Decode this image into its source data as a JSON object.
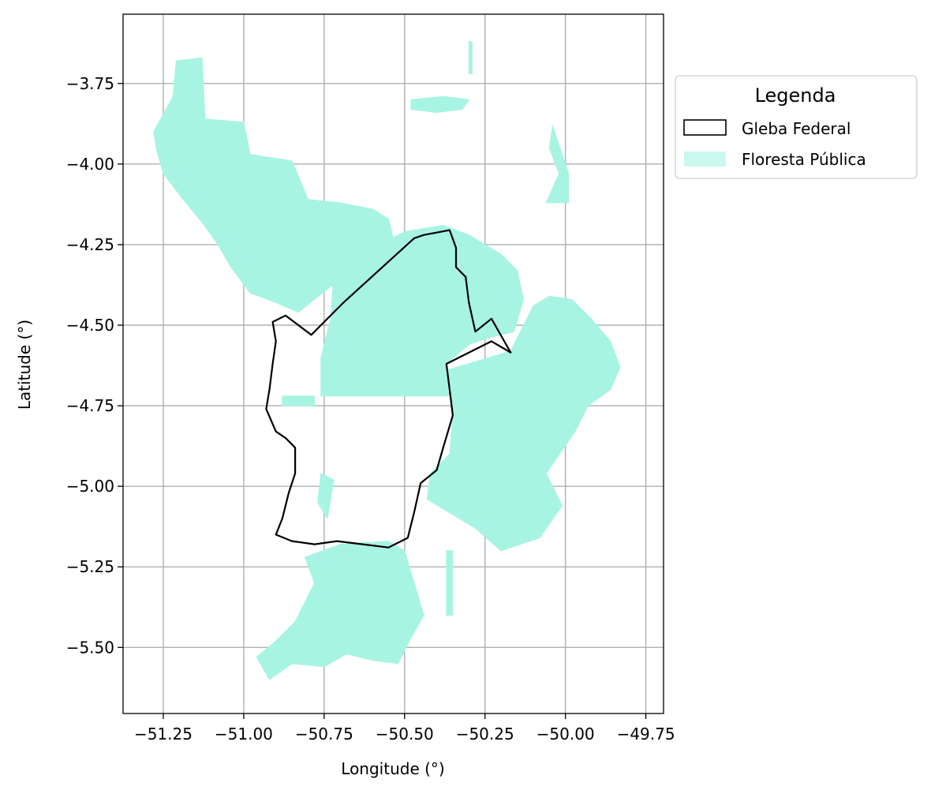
{
  "map": {
    "xlabel": "Longitude (°)",
    "ylabel": "Latitude (°)",
    "x_ticks": [
      {
        "value": -51.25,
        "label": "−51.25"
      },
      {
        "value": -51.0,
        "label": "−51.00"
      },
      {
        "value": -50.75,
        "label": "−50.75"
      },
      {
        "value": -50.5,
        "label": "−50.50"
      },
      {
        "value": -50.25,
        "label": "−50.25"
      },
      {
        "value": -50.0,
        "label": "−50.00"
      },
      {
        "value": -49.75,
        "label": "−49.75"
      }
    ],
    "y_ticks": [
      {
        "value": -3.75,
        "label": "−3.75"
      },
      {
        "value": -4.0,
        "label": "−4.00"
      },
      {
        "value": -4.25,
        "label": "−4.25"
      },
      {
        "value": -4.5,
        "label": "−4.50"
      },
      {
        "value": -4.75,
        "label": "−4.75"
      },
      {
        "value": -5.0,
        "label": "−5.00"
      },
      {
        "value": -5.25,
        "label": "−5.25"
      },
      {
        "value": -5.5,
        "label": "−5.50"
      }
    ],
    "xlim": [
      -51.375,
      -49.695
    ],
    "ylim": [
      -5.705,
      -3.535
    ],
    "grid": true,
    "legend": {
      "title": "Legenda",
      "placement": "outside-right-top",
      "items": [
        {
          "label": "Gleba Federal",
          "style": "outline",
          "edge": "#000000",
          "fill": "none"
        },
        {
          "label": "Floresta Pública",
          "style": "fill",
          "fill": "#a8f4e2"
        }
      ]
    },
    "colors": {
      "forest": "#a8f4e2",
      "boundary": "#000000",
      "grid": "#b0b0b0"
    },
    "gleba_federal_boundary": [
      [
        -50.44,
        -4.22
      ],
      [
        -50.36,
        -4.205
      ],
      [
        -50.34,
        -4.26
      ],
      [
        -50.34,
        -4.32
      ],
      [
        -50.31,
        -4.35
      ],
      [
        -50.3,
        -4.43
      ],
      [
        -50.28,
        -4.52
      ],
      [
        -50.23,
        -4.48
      ],
      [
        -50.17,
        -4.585
      ],
      [
        -50.23,
        -4.55
      ],
      [
        -50.37,
        -4.62
      ],
      [
        -50.36,
        -4.7
      ],
      [
        -50.35,
        -4.78
      ],
      [
        -50.38,
        -4.88
      ],
      [
        -50.4,
        -4.95
      ],
      [
        -50.45,
        -4.99
      ],
      [
        -50.47,
        -5.08
      ],
      [
        -50.49,
        -5.16
      ],
      [
        -50.55,
        -5.19
      ],
      [
        -50.63,
        -5.18
      ],
      [
        -50.71,
        -5.17
      ],
      [
        -50.78,
        -5.18
      ],
      [
        -50.85,
        -5.17
      ],
      [
        -50.9,
        -5.15
      ],
      [
        -50.88,
        -5.1
      ],
      [
        -50.86,
        -5.02
      ],
      [
        -50.84,
        -4.96
      ],
      [
        -50.84,
        -4.88
      ],
      [
        -50.87,
        -4.85
      ],
      [
        -50.9,
        -4.83
      ],
      [
        -50.93,
        -4.76
      ],
      [
        -50.92,
        -4.7
      ],
      [
        -50.91,
        -4.62
      ],
      [
        -50.9,
        -4.55
      ],
      [
        -50.91,
        -4.49
      ],
      [
        -50.87,
        -4.47
      ],
      [
        -50.79,
        -4.53
      ],
      [
        -50.69,
        -4.43
      ],
      [
        -50.58,
        -4.33
      ],
      [
        -50.47,
        -4.23
      ]
    ],
    "floresta_publica_regions": [
      [
        [
          -51.21,
          -3.68
        ],
        [
          -51.13,
          -3.67
        ],
        [
          -51.12,
          -3.86
        ],
        [
          -51.0,
          -3.87
        ],
        [
          -50.98,
          -3.97
        ],
        [
          -50.85,
          -3.99
        ],
        [
          -50.8,
          -4.11
        ],
        [
          -50.7,
          -4.12
        ],
        [
          -50.6,
          -4.14
        ],
        [
          -50.55,
          -4.17
        ],
        [
          -50.53,
          -4.25
        ],
        [
          -50.62,
          -4.32
        ],
        [
          -50.73,
          -4.38
        ],
        [
          -50.83,
          -4.46
        ],
        [
          -50.9,
          -4.43
        ],
        [
          -50.98,
          -4.4
        ],
        [
          -51.04,
          -4.32
        ],
        [
          -51.08,
          -4.25
        ],
        [
          -51.13,
          -4.18
        ],
        [
          -51.18,
          -4.12
        ],
        [
          -51.25,
          -4.03
        ],
        [
          -51.27,
          -3.96
        ],
        [
          -51.28,
          -3.9
        ],
        [
          -51.22,
          -3.79
        ]
      ],
      [
        [
          -50.72,
          -4.34
        ],
        [
          -50.62,
          -4.27
        ],
        [
          -50.5,
          -4.21
        ],
        [
          -50.38,
          -4.19
        ],
        [
          -50.3,
          -4.22
        ],
        [
          -50.2,
          -4.28
        ],
        [
          -50.15,
          -4.33
        ],
        [
          -50.13,
          -4.42
        ],
        [
          -50.16,
          -4.52
        ],
        [
          -50.24,
          -4.54
        ],
        [
          -50.3,
          -4.56
        ],
        [
          -50.37,
          -4.62
        ],
        [
          -50.36,
          -4.72
        ],
        [
          -50.5,
          -4.72
        ],
        [
          -50.65,
          -4.72
        ],
        [
          -50.76,
          -4.72
        ],
        [
          -50.76,
          -4.6
        ],
        [
          -50.73,
          -4.48
        ]
      ],
      [
        [
          -50.37,
          -4.64
        ],
        [
          -50.17,
          -4.58
        ],
        [
          -50.1,
          -4.44
        ],
        [
          -50.05,
          -4.41
        ],
        [
          -49.98,
          -4.42
        ],
        [
          -49.92,
          -4.48
        ],
        [
          -49.86,
          -4.55
        ],
        [
          -49.83,
          -4.63
        ],
        [
          -49.86,
          -4.7
        ],
        [
          -49.93,
          -4.75
        ],
        [
          -49.97,
          -4.83
        ],
        [
          -50.06,
          -4.96
        ],
        [
          -50.01,
          -5.06
        ],
        [
          -50.08,
          -5.16
        ],
        [
          -50.2,
          -5.2
        ],
        [
          -50.28,
          -5.13
        ],
        [
          -50.43,
          -5.04
        ],
        [
          -50.42,
          -4.96
        ],
        [
          -50.36,
          -4.9
        ],
        [
          -50.35,
          -4.78
        ],
        [
          -50.36,
          -4.7
        ]
      ],
      [
        [
          -50.81,
          -5.22
        ],
        [
          -50.7,
          -5.18
        ],
        [
          -50.55,
          -5.17
        ],
        [
          -50.5,
          -5.2
        ],
        [
          -50.47,
          -5.3
        ],
        [
          -50.44,
          -5.4
        ],
        [
          -50.48,
          -5.47
        ],
        [
          -50.52,
          -5.55
        ],
        [
          -50.6,
          -5.54
        ],
        [
          -50.68,
          -5.52
        ],
        [
          -50.75,
          -5.56
        ],
        [
          -50.85,
          -5.55
        ],
        [
          -50.92,
          -5.6
        ],
        [
          -50.96,
          -5.53
        ],
        [
          -50.9,
          -5.48
        ],
        [
          -50.84,
          -5.42
        ],
        [
          -50.78,
          -5.3
        ]
      ],
      [
        [
          -50.88,
          -4.72
        ],
        [
          -50.78,
          -4.72
        ],
        [
          -50.78,
          -4.75
        ],
        [
          -50.88,
          -4.75
        ]
      ],
      [
        [
          -50.77,
          -5.05
        ],
        [
          -50.74,
          -5.1
        ],
        [
          -50.72,
          -4.98
        ],
        [
          -50.76,
          -4.96
        ]
      ],
      [
        [
          -50.04,
          -3.88
        ],
        [
          -49.99,
          -4.03
        ],
        [
          -49.99,
          -4.12
        ],
        [
          -50.06,
          -4.12
        ],
        [
          -50.02,
          -4.03
        ],
        [
          -50.05,
          -3.95
        ]
      ],
      [
        [
          -50.48,
          -3.8
        ],
        [
          -50.38,
          -3.79
        ],
        [
          -50.3,
          -3.8
        ],
        [
          -50.32,
          -3.83
        ],
        [
          -50.4,
          -3.84
        ],
        [
          -50.48,
          -3.83
        ]
      ],
      [
        [
          -50.3,
          -3.62
        ],
        [
          -50.29,
          -3.62
        ],
        [
          -50.29,
          -3.72
        ],
        [
          -50.3,
          -3.72
        ]
      ],
      [
        [
          -50.37,
          -5.2
        ],
        [
          -50.35,
          -5.2
        ],
        [
          -50.35,
          -5.4
        ],
        [
          -50.37,
          -5.4
        ]
      ]
    ]
  }
}
